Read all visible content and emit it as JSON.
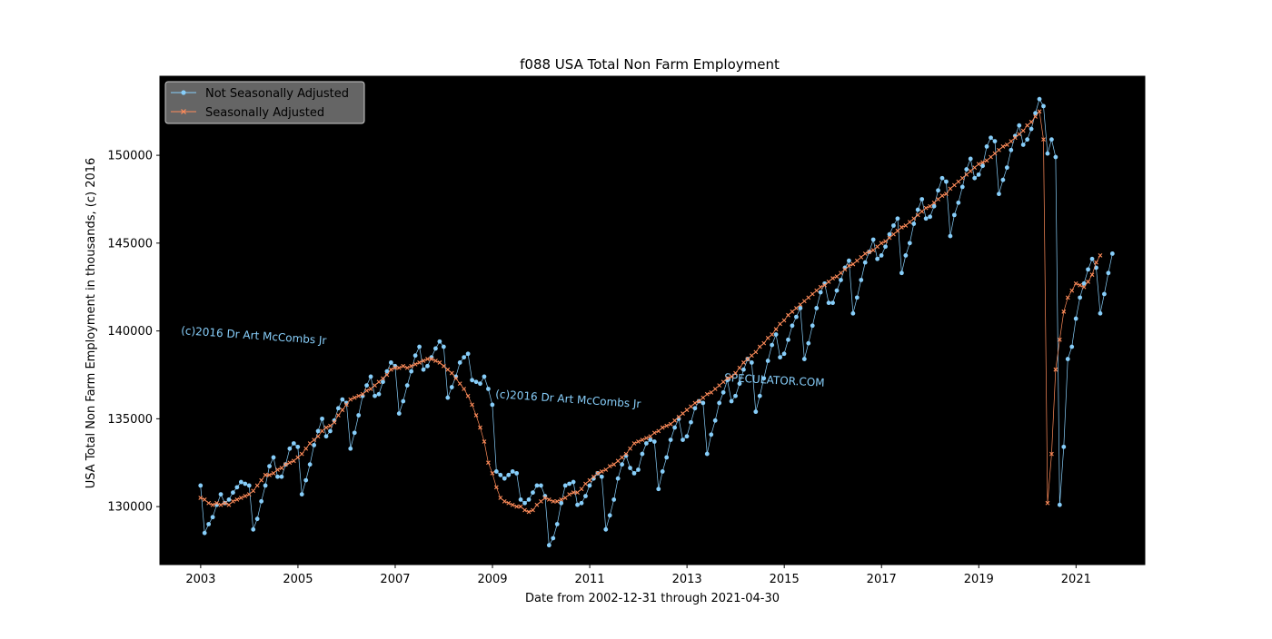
{
  "chart_data": {
    "type": "line",
    "title": "f088 USA Total Non Farm Employment",
    "xlabel": "Date from 2002-12-31 through 2021-04-30",
    "ylabel": "USA Total Non Farm Employment in thousands, (c) 2016",
    "xlim": [
      "2002-03-01",
      "2022-06-01"
    ],
    "ylim": [
      126700,
      154500
    ],
    "x_ticks": [
      "2003",
      "2005",
      "2007",
      "2009",
      "2011",
      "2013",
      "2015",
      "2017",
      "2019",
      "2021"
    ],
    "y_ticks": [
      "130000",
      "135000",
      "140000",
      "145000",
      "150000"
    ],
    "grid": false,
    "background": "#000000",
    "legend_position": "top-left",
    "start_date": "2002-12-31",
    "series": [
      {
        "name": "Not Seasonally Adjusted",
        "color": "#87cefa",
        "marker": "circle",
        "values": [
          131200,
          128500,
          129000,
          129400,
          130100,
          130700,
          130200,
          130400,
          130800,
          131100,
          131400,
          131300,
          131200,
          128700,
          129300,
          130300,
          131200,
          132300,
          132800,
          131700,
          131700,
          132400,
          133300,
          133600,
          133400,
          130700,
          131500,
          132400,
          133500,
          134300,
          135000,
          134000,
          134300,
          134900,
          135600,
          136100,
          135900,
          133300,
          134200,
          135200,
          136300,
          136900,
          137400,
          136300,
          136400,
          137100,
          137700,
          138200,
          138000,
          135300,
          136000,
          136900,
          137700,
          138600,
          139100,
          137800,
          138000,
          138500,
          139000,
          139400,
          139100,
          136200,
          136800,
          137400,
          138200,
          138500,
          138700,
          137200,
          137100,
          137000,
          137400,
          136700,
          135800,
          132000,
          131800,
          131600,
          131800,
          132000,
          131900,
          130400,
          130200,
          130400,
          130800,
          131200,
          131200,
          130600,
          127800,
          128200,
          129000,
          130200,
          131200,
          131300,
          131400,
          130100,
          130200,
          130600,
          131200,
          131600,
          131900,
          131700,
          128700,
          129500,
          130400,
          131600,
          132400,
          132900,
          132200,
          131900,
          132100,
          133000,
          133600,
          133800,
          133700,
          131000,
          132000,
          132800,
          133800,
          134500,
          135000,
          133800,
          134000,
          134800,
          135600,
          136000,
          135900,
          133000,
          134100,
          134900,
          135900,
          136500,
          137200,
          136000,
          136300,
          137000,
          137800,
          138400,
          138200,
          135400,
          136300,
          137300,
          138300,
          139200,
          139800,
          138500,
          138700,
          139500,
          140300,
          140800,
          141300,
          138400,
          139300,
          140300,
          141300,
          142200,
          142700,
          141600,
          141600,
          142300,
          142900,
          143600,
          144000,
          141000,
          141900,
          142900,
          143900,
          144500,
          145200,
          144100,
          144300,
          144800,
          145500,
          146000,
          146400,
          143300,
          144300,
          145000,
          146100,
          146900,
          147500,
          146400,
          146500,
          147100,
          148000,
          148700,
          148500,
          145400,
          146600,
          147300,
          148200,
          149200,
          149800,
          148700,
          148900,
          149400,
          150500,
          151000,
          150800,
          147800,
          148600,
          149300,
          150300,
          151100,
          151700,
          150600,
          150900,
          151500,
          152400,
          153200,
          152800,
          150100,
          150900,
          149900,
          130100,
          133400,
          138400,
          139100,
          140700,
          141900,
          142700,
          143500,
          144100,
          143600,
          141000,
          142100,
          143300,
          144400
        ],
        "values_step": "monthly"
      },
      {
        "name": "Seasonally Adjusted",
        "color": "#ff8c5a",
        "marker": "x",
        "values": [
          130500,
          130400,
          130200,
          130100,
          130200,
          130100,
          130200,
          130100,
          130300,
          130400,
          130500,
          130600,
          130700,
          130900,
          131200,
          131500,
          131800,
          131800,
          131900,
          132100,
          132200,
          132400,
          132500,
          132600,
          132800,
          133000,
          133300,
          133600,
          133800,
          134000,
          134300,
          134500,
          134600,
          134800,
          135200,
          135500,
          135800,
          136100,
          136200,
          136300,
          136400,
          136600,
          136700,
          136900,
          137100,
          137300,
          137500,
          137800,
          137900,
          137900,
          138000,
          137900,
          138000,
          138100,
          138200,
          138300,
          138400,
          138400,
          138300,
          138200,
          138000,
          137800,
          137600,
          137300,
          137000,
          136700,
          136300,
          135800,
          135200,
          134500,
          133700,
          132500,
          131900,
          131100,
          130500,
          130300,
          130200,
          130100,
          130000,
          130000,
          129800,
          129700,
          129800,
          130100,
          130300,
          130500,
          130400,
          130300,
          130300,
          130400,
          130500,
          130700,
          130800,
          130800,
          131000,
          131300,
          131500,
          131700,
          131900,
          132000,
          132100,
          132300,
          132400,
          132600,
          132800,
          133000,
          133300,
          133600,
          133700,
          133800,
          133900,
          134000,
          134200,
          134300,
          134500,
          134600,
          134700,
          134900,
          135100,
          135300,
          135500,
          135700,
          135900,
          136000,
          136200,
          136400,
          136500,
          136700,
          136900,
          137100,
          137300,
          137400,
          137600,
          137900,
          138200,
          138400,
          138600,
          138800,
          139100,
          139300,
          139600,
          139800,
          140100,
          140400,
          140600,
          140900,
          141100,
          141300,
          141500,
          141700,
          141900,
          142100,
          142300,
          142500,
          142600,
          142800,
          143000,
          143100,
          143300,
          143500,
          143700,
          143800,
          144000,
          144200,
          144400,
          144500,
          144600,
          144800,
          145000,
          145100,
          145300,
          145500,
          145700,
          145900,
          146000,
          146200,
          146400,
          146600,
          146800,
          147000,
          147100,
          147300,
          147500,
          147700,
          147800,
          148100,
          148300,
          148500,
          148700,
          148900,
          149100,
          149300,
          149500,
          149600,
          149700,
          149900,
          150100,
          150300,
          150500,
          150600,
          150800,
          151000,
          151200,
          151400,
          151700,
          151900,
          152200,
          152500,
          150900,
          130200,
          133000,
          137800,
          139500,
          141100,
          141900,
          142300,
          142700,
          142600,
          142500,
          142800,
          143200,
          143900,
          144300
        ],
        "values_step": "monthly"
      }
    ]
  },
  "watermarks": [
    "(c)2016 Dr Art McCombs Jr",
    "(c)2016 Dr Art McCombs Jr",
    "SPECULATOR.COM"
  ]
}
